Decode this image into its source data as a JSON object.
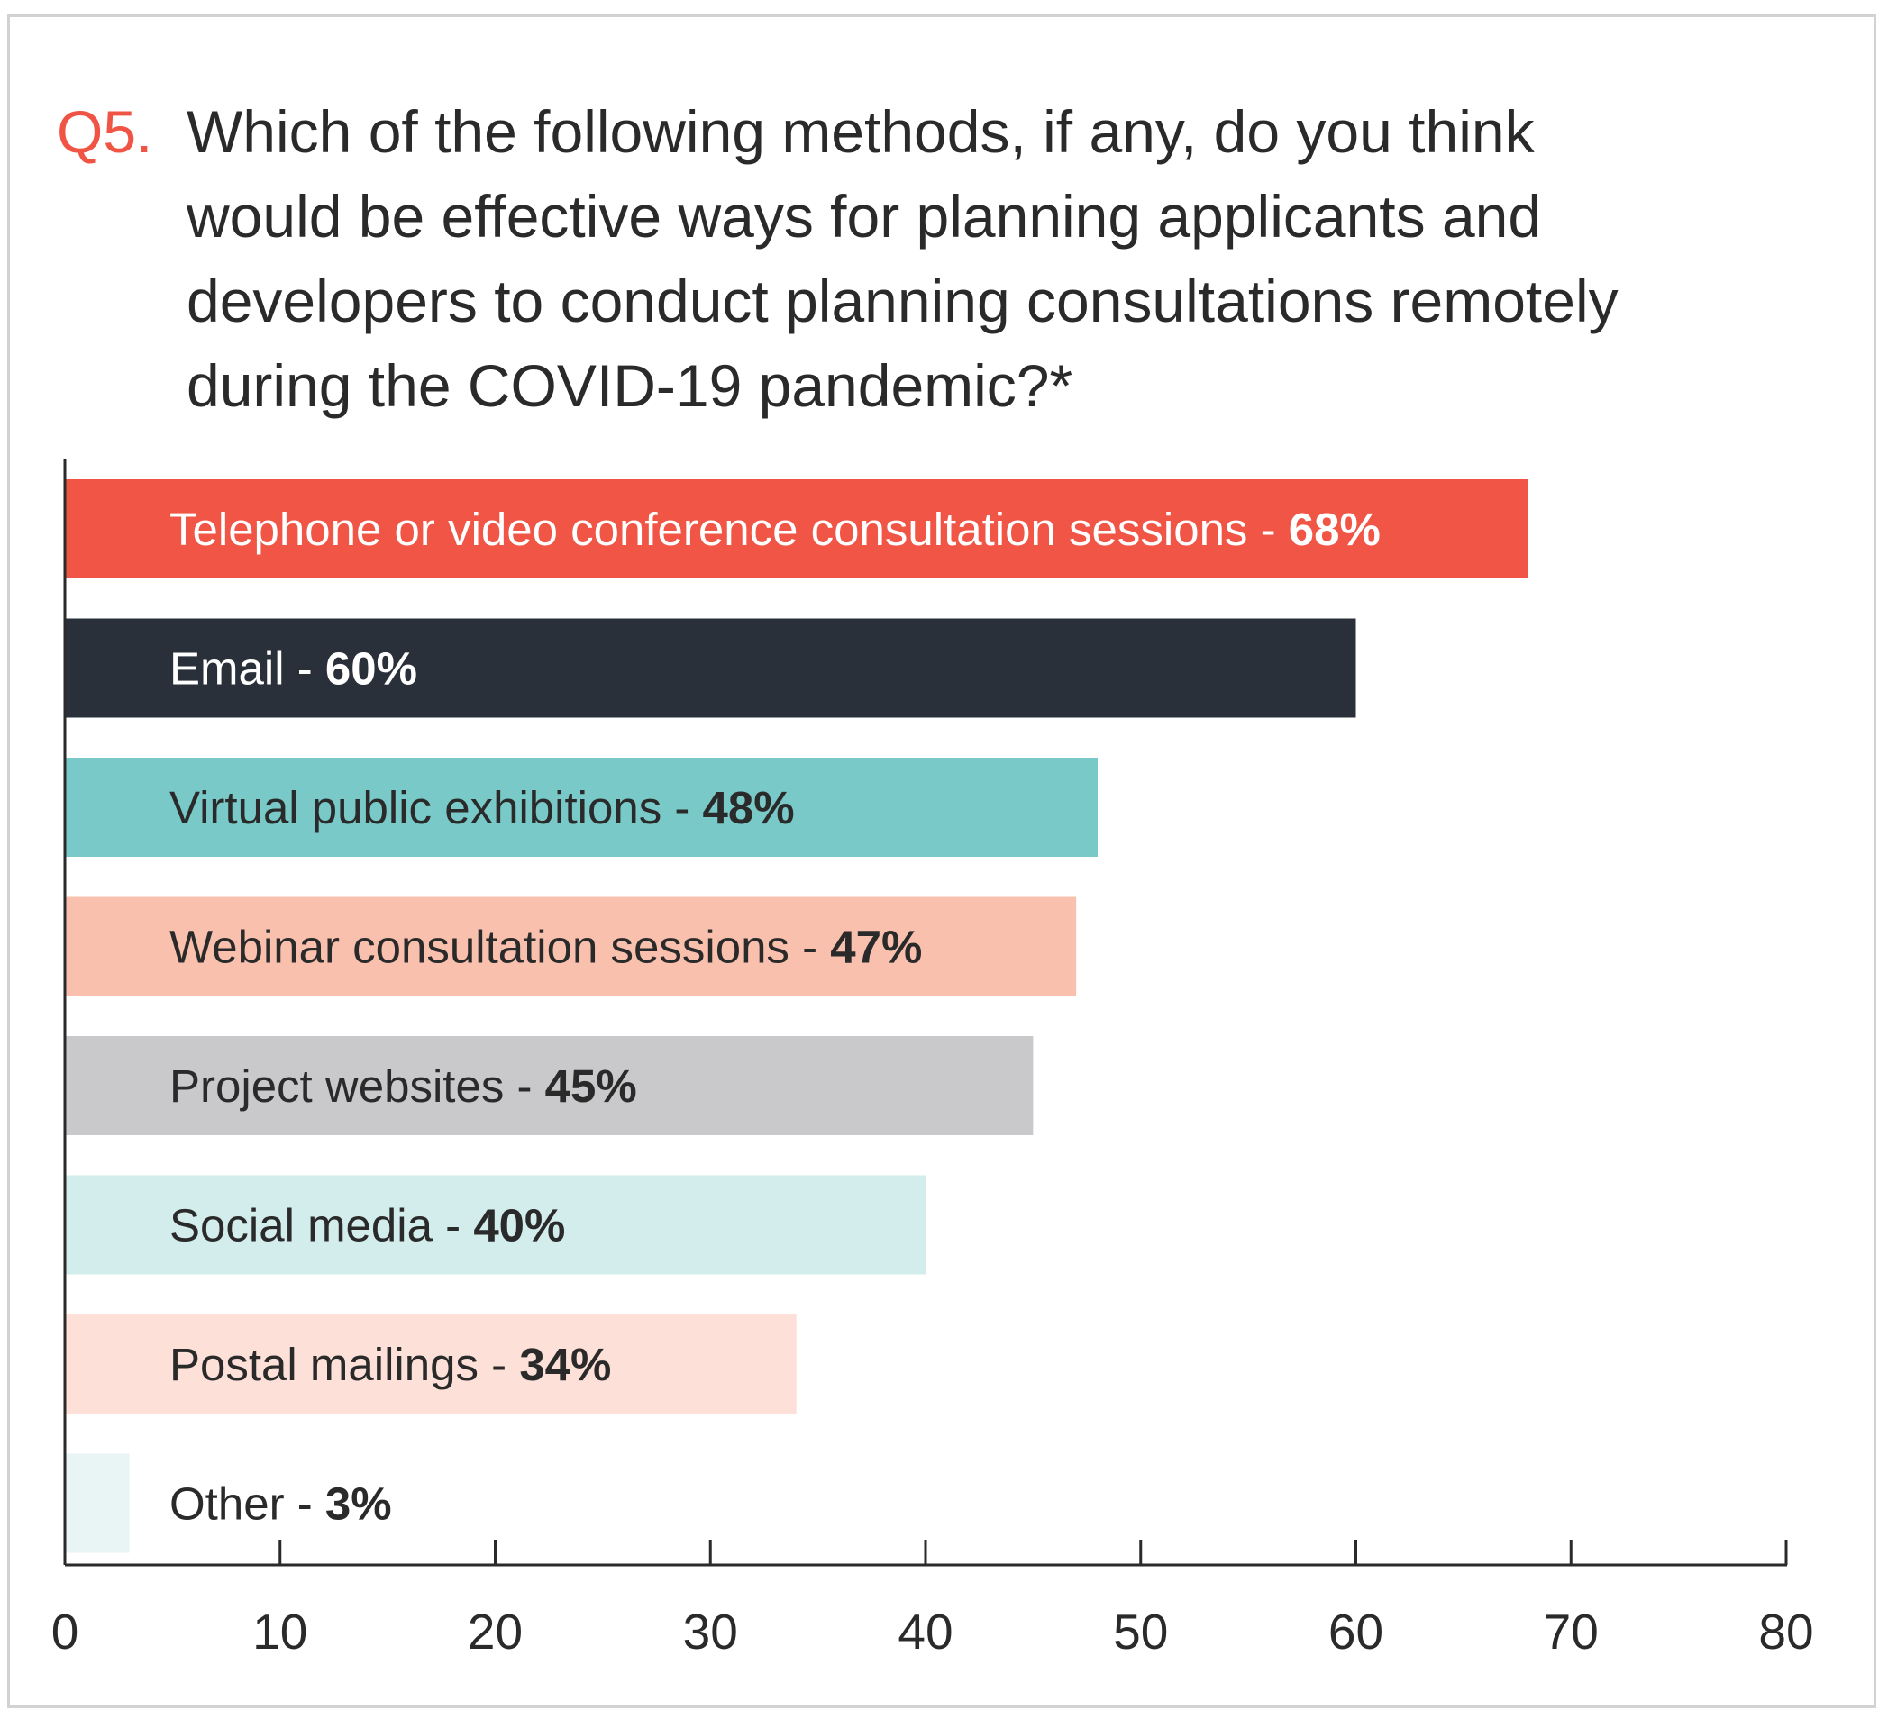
{
  "question": {
    "number": "Q5.",
    "text": "Which of the following methods, if any, do you think\nwould be effective ways for planning applicants and\ndevelopers to conduct planning consultations remotely\nduring the COVID-19 pandemic?*"
  },
  "chart_data": {
    "type": "bar",
    "orientation": "horizontal",
    "categories": [
      "Telephone or video conference consultation sessions",
      "Email",
      "Virtual public exhibitions",
      "Webinar consultation sessions",
      "Project websites",
      "Social media",
      "Postal mailings",
      "Other"
    ],
    "values": [
      68,
      60,
      48,
      47,
      45,
      40,
      34,
      3
    ],
    "value_labels": [
      "68%",
      "60%",
      "48%",
      "47%",
      "45%",
      "40%",
      "34%",
      "3%"
    ],
    "separator": " - ",
    "bar_colors": [
      "#f05545",
      "#2a3039",
      "#78c9c7",
      "#f9c0ad",
      "#c9c9cb",
      "#d3ecec",
      "#fde0d8",
      "#e9f4f5"
    ],
    "label_colors": [
      "#ffffff",
      "#ffffff",
      "#2a2a2a",
      "#2a2a2a",
      "#2a2a2a",
      "#2a2a2a",
      "#2a2a2a",
      "#2a2a2a"
    ],
    "xlim": [
      0,
      80
    ],
    "xticks": [
      0,
      10,
      20,
      30,
      40,
      50,
      60,
      70,
      80
    ],
    "xtick_labels": [
      "0",
      "10",
      "20",
      "30",
      "40",
      "50",
      "60",
      "70",
      "80"
    ],
    "xlabel": "",
    "ylabel": "",
    "grid": false,
    "legend": "none"
  }
}
